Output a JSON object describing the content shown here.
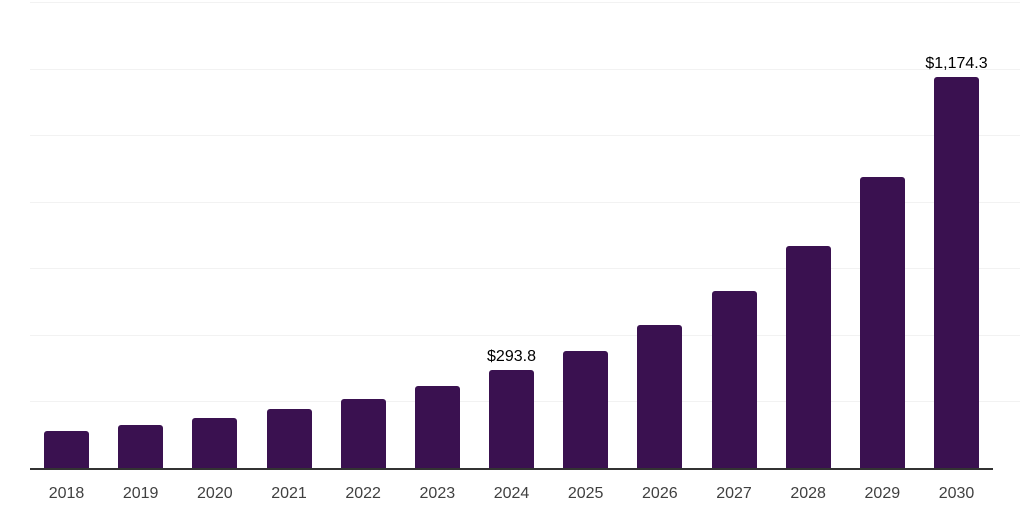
{
  "chart_data": {
    "type": "bar",
    "categories": [
      "2018",
      "2019",
      "2020",
      "2021",
      "2022",
      "2023",
      "2024",
      "2025",
      "2026",
      "2027",
      "2028",
      "2029",
      "2030"
    ],
    "values": [
      111,
      129,
      150,
      176,
      206,
      245,
      293.8,
      353,
      430,
      532,
      667,
      873,
      1174.3
    ],
    "data_labels": [
      {
        "category": "2024",
        "text": "$293.8"
      },
      {
        "category": "2030",
        "text": "$1,174.3"
      }
    ],
    "ylim": [
      0,
      1400
    ],
    "gridline_step": 200,
    "grid": "horizontal-only",
    "legend": "none",
    "y_axis_tick_labels": "hidden"
  },
  "colors": {
    "bar": "#3A1150",
    "axis_line": "#333333",
    "gridline": "#F2F2F2",
    "tick_label": "#404040",
    "data_label": "#000000",
    "background": "#FFFFFF"
  }
}
